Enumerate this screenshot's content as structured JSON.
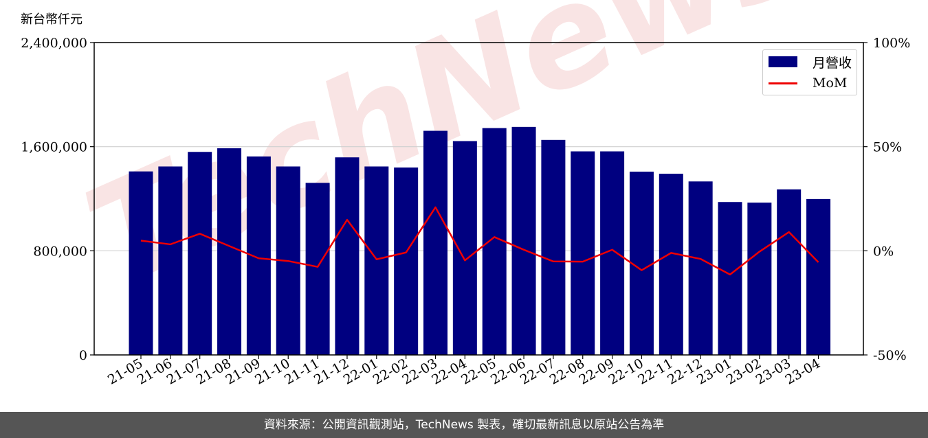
{
  "unit_label": "新台幣仟元",
  "footer_text": "資料來源：公開資訊觀測站，TechNews 製表，確切最新訊息以原站公告為準",
  "watermark": "TechNews",
  "colors": {
    "bar": "#000080",
    "line": "#ee0000",
    "footer_bg": "#555555",
    "watermark": "#f2c4c4"
  },
  "chart_data": {
    "type": "bar",
    "categories": [
      "21-05",
      "21-06",
      "21-07",
      "21-08",
      "21-09",
      "21-10",
      "21-11",
      "21-12",
      "22-01",
      "22-02",
      "22-03",
      "22-04",
      "22-05",
      "22-06",
      "22-07",
      "22-08",
      "22-09",
      "22-10",
      "22-11",
      "22-12",
      "23-01",
      "23-02",
      "23-03",
      "23-04"
    ],
    "series": [
      {
        "name": "月營收",
        "type": "bar",
        "axis": "left",
        "values": [
          1410000,
          1448000,
          1560000,
          1588000,
          1525000,
          1448000,
          1322000,
          1518000,
          1448000,
          1440000,
          1722000,
          1643000,
          1743000,
          1752000,
          1652000,
          1564000,
          1564000,
          1408000,
          1392000,
          1333000,
          1175000,
          1170000,
          1272000,
          1198000
        ]
      },
      {
        "name": "MoM",
        "type": "line",
        "axis": "right",
        "values": [
          4.9,
          3.1,
          8.2,
          2.3,
          -3.6,
          -4.9,
          -7.7,
          14.9,
          -4.1,
          -0.8,
          20.9,
          -4.6,
          6.6,
          0.5,
          -5.1,
          -5.2,
          0.5,
          -9.3,
          -1.0,
          -3.9,
          -11.4,
          -0.4,
          9.0,
          -5.5
        ]
      }
    ],
    "y_left": {
      "lim": [
        0,
        2400000
      ],
      "ticks": [
        0,
        800000,
        1600000,
        2400000
      ],
      "tick_labels": [
        "0",
        "800,000",
        "1,600,000",
        "2,400,000"
      ]
    },
    "y_right": {
      "lim": [
        -50,
        100
      ],
      "ticks": [
        -50,
        0,
        50,
        100
      ],
      "tick_labels": [
        "-50%",
        "0%",
        "50%",
        "100%"
      ]
    },
    "grid": "horizontal",
    "legend_position": "top-right"
  }
}
